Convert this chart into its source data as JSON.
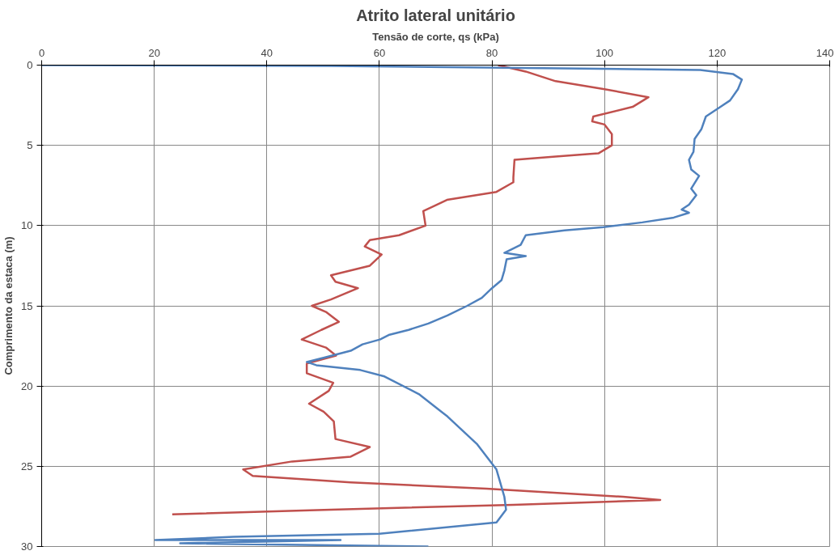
{
  "chart_data": {
    "type": "line",
    "title": "Atrito lateral unitário",
    "xlabel": "Tensão de corte, qs (kPa)",
    "ylabel": "Comprimento da estaca (m)",
    "xlim": [
      0,
      140
    ],
    "xticks": [
      0,
      20,
      40,
      60,
      80,
      100,
      120,
      140
    ],
    "ylim": [
      30,
      0
    ],
    "yticks": [
      0,
      5,
      10,
      15,
      20,
      25,
      30
    ],
    "grid": true,
    "series": [
      {
        "color": "#c0504d",
        "x": [
          81.1,
          86,
          91.3,
          100,
          107.8,
          105.0,
          98,
          97.8,
          100,
          101.3,
          101.3,
          98.9,
          91.3,
          84,
          83.8,
          83.8,
          80.8,
          72,
          67.8,
          68.2,
          63.5,
          58.3,
          57.4,
          60.4,
          58.3,
          51.4,
          52.2,
          56.2,
          51.4,
          48,
          50.6,
          52.8,
          49.7,
          46.2,
          50.5,
          52.3,
          47.1,
          47.1,
          51.8,
          51,
          47.5,
          50.1,
          51.9,
          52.2,
          58.3,
          54.9,
          44.5,
          35.8,
          37.5,
          54.9,
          79,
          103.3,
          109.9,
          83.8,
          51.4,
          23.2
        ],
        "values": [
          0,
          0.4,
          1.0,
          1.5,
          2,
          2.6,
          3.2,
          3.5,
          3.7,
          4.3,
          5,
          5.5,
          5.7,
          5.9,
          7,
          7.3,
          7.9,
          8.4,
          9.1,
          10,
          10.6,
          10.9,
          11.3,
          11.8,
          12.5,
          13.1,
          13.5,
          13.9,
          14.6,
          15,
          15.4,
          16,
          16.5,
          17.1,
          17.6,
          18.1,
          18.6,
          19.2,
          19.8,
          20.3,
          21.1,
          21.6,
          22.2,
          23.3,
          23.8,
          24.4,
          24.7,
          25.2,
          25.6,
          26,
          26.4,
          26.9,
          27.1,
          27.4,
          27.7,
          28
        ]
      },
      {
        "color": "#4f81bd",
        "x": [
          0,
          51.4,
          117,
          122.8,
          124.4,
          123.7,
          122.3,
          120.6,
          118,
          117.2,
          116,
          115.8,
          115,
          115.4,
          116.8,
          115.4,
          116.3,
          115,
          113.7,
          115,
          112.3,
          106.7,
          99.8,
          92.9,
          86,
          85.1,
          82.2,
          86,
          82.6,
          82.2,
          81.7,
          80,
          78.2,
          75.6,
          72.1,
          68.7,
          65.2,
          61.8,
          60.1,
          57,
          54.9,
          50.5,
          47.1,
          48.8,
          56.6,
          60.9,
          67,
          72.1,
          77.3,
          80.8,
          82.2,
          82.5,
          80.8,
          60,
          34.1,
          20.2,
          39.3,
          53.1,
          24.6,
          68.7
        ],
        "values": [
          0,
          0.05,
          0.3,
          0.55,
          0.9,
          1.5,
          2.2,
          2.6,
          3.2,
          4,
          4.6,
          5.4,
          5.9,
          6.5,
          6.9,
          7.7,
          8.1,
          8.7,
          9,
          9.2,
          9.5,
          9.8,
          10.1,
          10.3,
          10.6,
          11.2,
          11.7,
          11.9,
          12.1,
          12.8,
          13.4,
          13.9,
          14.5,
          15,
          15.6,
          16.1,
          16.5,
          16.8,
          17.1,
          17.4,
          17.8,
          18.2,
          18.5,
          18.7,
          19,
          19.4,
          20.5,
          21.9,
          23.6,
          25.2,
          26.9,
          27.7,
          28.5,
          29.2,
          29.4,
          29.6,
          29.6,
          29.6,
          29.8,
          30
        ]
      }
    ]
  }
}
